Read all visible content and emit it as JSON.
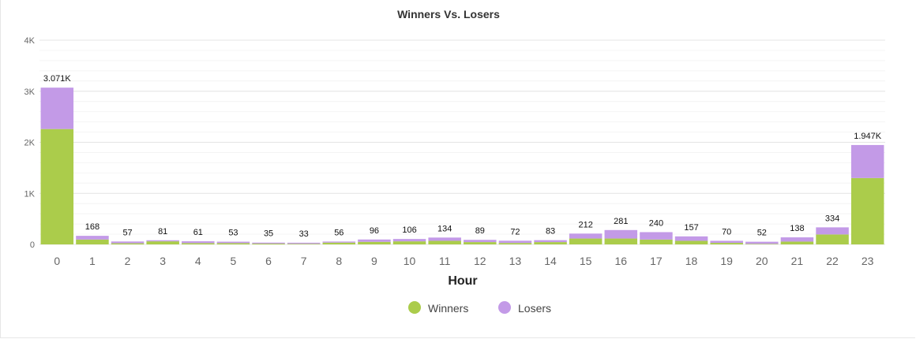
{
  "chart_data": {
    "type": "bar",
    "stacked": true,
    "title": "Winners Vs. Losers",
    "xlabel": "Hour",
    "ylabel": "",
    "ylim": [
      0,
      4000
    ],
    "yticks": [
      {
        "value": 0,
        "label": "0"
      },
      {
        "value": 1000,
        "label": "1K"
      },
      {
        "value": 2000,
        "label": "2K"
      },
      {
        "value": 3000,
        "label": "3K"
      },
      {
        "value": 4000,
        "label": "4K"
      }
    ],
    "grid": true,
    "legend": "bottom-center",
    "categories": [
      "0",
      "1",
      "2",
      "3",
      "4",
      "5",
      "6",
      "7",
      "8",
      "9",
      "10",
      "11",
      "12",
      "13",
      "14",
      "15",
      "16",
      "17",
      "18",
      "19",
      "20",
      "21",
      "22",
      "23"
    ],
    "series": [
      {
        "name": "Winners",
        "color": "#abcc4b",
        "values": [
          2260,
          95,
          22,
          60,
          25,
          25,
          15,
          12,
          35,
          50,
          60,
          70,
          45,
          28,
          45,
          115,
          115,
          95,
          70,
          30,
          10,
          55,
          195,
          1300
        ]
      },
      {
        "name": "Losers",
        "color": "#c39ae7",
        "values": [
          811,
          73,
          35,
          21,
          36,
          28,
          20,
          21,
          21,
          46,
          46,
          64,
          44,
          44,
          38,
          97,
          166,
          145,
          87,
          40,
          42,
          83,
          139,
          647
        ]
      }
    ],
    "totals": [
      3071,
      168,
      57,
      81,
      61,
      53,
      35,
      33,
      56,
      96,
      106,
      134,
      89,
      72,
      83,
      212,
      281,
      240,
      157,
      70,
      52,
      138,
      334,
      1947
    ],
    "total_labels": [
      "3.071K",
      "168",
      "57",
      "81",
      "61",
      "53",
      "35",
      "33",
      "56",
      "96",
      "106",
      "134",
      "89",
      "72",
      "83",
      "212",
      "281",
      "240",
      "157",
      "70",
      "52",
      "138",
      "334",
      "1.947K"
    ]
  }
}
